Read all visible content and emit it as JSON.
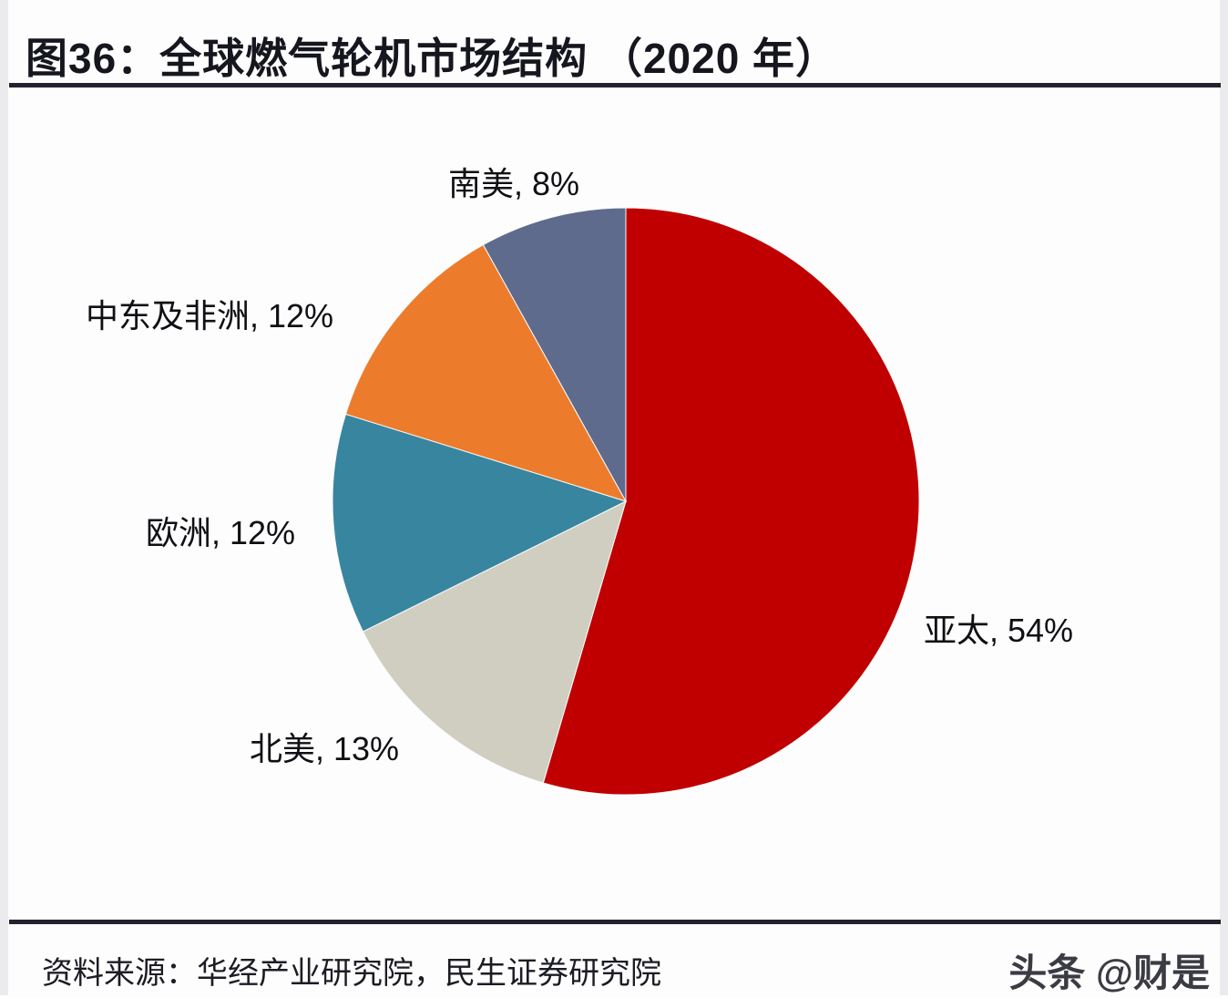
{
  "figure": {
    "title": "图36：全球燃气轮机市场结构 （2020 年）",
    "source": "资料来源：华经产业研究院，民生证券研究院",
    "watermark": "头条 @财是",
    "rule_color": "#23232f"
  },
  "chart_data": {
    "type": "pie",
    "title": "全球燃气轮机市场结构（2020 年）",
    "unit": "%",
    "direction": "clockwise",
    "start_angle_deg": 0,
    "legend_position": "none",
    "labels_outside": true,
    "series": [
      {
        "name": "亚太",
        "value": 54,
        "color": "#c00000",
        "label": "亚太, 54%"
      },
      {
        "name": "北美",
        "value": 13,
        "color": "#d0cec0",
        "label": "北美, 13%"
      },
      {
        "name": "欧洲",
        "value": 12,
        "color": "#3885a0",
        "label": "欧洲, 12%"
      },
      {
        "name": "中东及非洲",
        "value": 12,
        "color": "#ec7c2c",
        "label": "中东及非洲, 12%"
      },
      {
        "name": "南美",
        "value": 8,
        "color": "#5f6b8c",
        "label": "南美, 8%"
      }
    ]
  }
}
